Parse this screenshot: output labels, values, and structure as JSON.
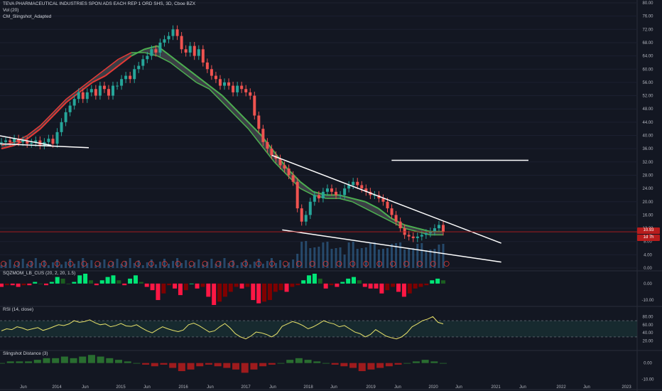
{
  "header": {
    "title": "TEVA PHARMACEUTICAL INDUSTRIES SPON ADS EACH REP 1 ORD SHS, 3D, Cboe BZX",
    "vol": "Vol (20)",
    "indicator": "CM_Slingshot_Adapted"
  },
  "price_tags": {
    "last": "10.93",
    "countdown": "1d 7h"
  },
  "colors": {
    "background": "#131722",
    "up": "#26a69a",
    "down": "#ef5350",
    "ema_bull": "#4caf50",
    "ema_bear": "#e53935",
    "rsi": "#e8e26a",
    "trendline": "#ffffff",
    "last_price": "#b71c1c"
  },
  "chart_data": [
    {
      "type": "line",
      "pane": "price",
      "ylim": [
        0,
        80
      ],
      "y_ticks": [
        "80.00",
        "76.00",
        "72.00",
        "68.00",
        "64.00",
        "60.00",
        "56.00",
        "52.00",
        "48.00",
        "44.00",
        "40.00",
        "36.00",
        "32.00",
        "28.00",
        "24.00",
        "20.00",
        "16.00",
        "12.00",
        "8.00",
        "4.00",
        "0.00"
      ],
      "x_ticks": [
        "Jun",
        "2014",
        "Jun",
        "2015",
        "Jun",
        "2016",
        "Jun",
        "2017",
        "Jun",
        "2018",
        "Jun",
        "2019",
        "Jun",
        "2020",
        "Jun",
        "2021",
        "Jun",
        "2022",
        "Jun",
        "2023"
      ],
      "series": [
        {
          "values": [
            38,
            38.5,
            38,
            39,
            38,
            38.5,
            37.5,
            37.8,
            38.5,
            37,
            38,
            39,
            37.5,
            41,
            44,
            47,
            49,
            51,
            53,
            51,
            53,
            54,
            52,
            55,
            54,
            52,
            55,
            55,
            57,
            58,
            57,
            60,
            61,
            63,
            64,
            66,
            65,
            68,
            69,
            70,
            72,
            70,
            66,
            65,
            67,
            64,
            66,
            62,
            60,
            58,
            57,
            55,
            56,
            55,
            53,
            55,
            54,
            53,
            52,
            46,
            42,
            38,
            36,
            34,
            33,
            31,
            30,
            28,
            26,
            18,
            14,
            16,
            20,
            22,
            21,
            23,
            24,
            23,
            22,
            22,
            24,
            25,
            26,
            25,
            24,
            23,
            22,
            22,
            21,
            20,
            18,
            16,
            14,
            12,
            10,
            9.5,
            9,
            9.5,
            10,
            10.5,
            11,
            12,
            13,
            11
          ]
        },
        {
          "values": [
            36,
            37,
            39,
            42,
            46,
            50,
            53,
            56,
            58,
            61,
            64,
            66,
            67,
            64,
            61,
            58,
            55,
            52,
            48,
            44,
            40,
            35,
            30,
            26,
            23,
            22,
            22,
            21,
            20,
            18,
            15,
            13,
            12,
            11,
            11
          ]
        },
        {
          "values": [
            37,
            38,
            40,
            43,
            47,
            51,
            54,
            57,
            60,
            63,
            65,
            65,
            64,
            62,
            59,
            56,
            54,
            50,
            46,
            42,
            37,
            32,
            28,
            24,
            22,
            21,
            21,
            20,
            18,
            16,
            14,
            12,
            11,
            10,
            10
          ]
        }
      ],
      "trendlines": [
        {
          "x": [
            "2013-02",
            "2013-12"
          ],
          "y": [
            40,
            37
          ]
        },
        {
          "x": [
            "2013-02",
            "2014-07"
          ],
          "y": [
            37.5,
            36.3
          ]
        },
        {
          "x": [
            "2017-06",
            "2021-02"
          ],
          "y": [
            34,
            7.5
          ]
        },
        {
          "x": [
            "2017-08",
            "2021-02"
          ],
          "y": [
            11.5,
            1.8
          ]
        },
        {
          "x": [
            "2019-05",
            "2021-07"
          ],
          "y": [
            32.5,
            32.5
          ]
        }
      ],
      "last_price": 10.93
    },
    {
      "type": "bar",
      "pane": "squeeze_momentum",
      "title": "SQZMOM_LB_CUS (20, 2, 20, 1.5)",
      "y_ticks": [
        "0.00",
        "-10.00"
      ],
      "values": [
        -2,
        -1,
        -1,
        -2,
        -1,
        -1,
        1,
        0,
        -1,
        1,
        4,
        3,
        0,
        1,
        5,
        6,
        2,
        -1,
        2,
        4,
        5,
        2,
        -1,
        3,
        5,
        1,
        -2,
        -4,
        -10,
        -6,
        -1,
        -3,
        -7,
        -4,
        0,
        -3,
        -2,
        -8,
        -13,
        -11,
        -8,
        -5,
        -2,
        -3,
        -2,
        -10,
        -12,
        -11,
        -10,
        -5,
        -4,
        -5,
        -2,
        -1,
        2,
        5,
        6,
        3,
        -3,
        -1,
        -2,
        1,
        3,
        4,
        2,
        -2,
        -3,
        -3,
        -6,
        -4,
        -2,
        -5,
        -8,
        -6,
        -3,
        -2,
        -1,
        2,
        3,
        2
      ]
    },
    {
      "type": "line",
      "pane": "rsi",
      "title": "RSI (14, close)",
      "ylim": [
        0,
        100
      ],
      "y_ticks": [
        "80.00",
        "60.00",
        "40.00",
        "20.00"
      ],
      "values": [
        45,
        50,
        48,
        55,
        52,
        47,
        50,
        53,
        46,
        50,
        55,
        60,
        58,
        62,
        70,
        66,
        68,
        72,
        65,
        60,
        62,
        55,
        58,
        63,
        57,
        56,
        60,
        52,
        45,
        40,
        48,
        55,
        50,
        46,
        43,
        47,
        60,
        64,
        58,
        50,
        42,
        45,
        55,
        63,
        52,
        38,
        30,
        25,
        32,
        42,
        40,
        36,
        30,
        38,
        56,
        62,
        68,
        64,
        58,
        50,
        55,
        62,
        70,
        65,
        62,
        55,
        58,
        50,
        42,
        38,
        30,
        36,
        48,
        40,
        32,
        28,
        25,
        30,
        40,
        55,
        62,
        70,
        74,
        80,
        66,
        62
      ]
    },
    {
      "type": "bar",
      "pane": "slingshot_distance",
      "title": "Slingshot Distance (3)",
      "y_ticks": [
        "0.00",
        "-10.00"
      ],
      "values": [
        0,
        1,
        1,
        1,
        2,
        3,
        3,
        4,
        3,
        4,
        5,
        4,
        3,
        2,
        1,
        0,
        -1,
        -2,
        -1,
        -3,
        -5,
        -4,
        -2,
        -1,
        -2,
        -3,
        -4,
        -6,
        -4,
        -2,
        -1,
        0,
        2,
        3,
        2,
        1,
        0,
        -1,
        -2,
        -3,
        -5,
        -4,
        -3,
        -2,
        -1,
        0,
        1,
        2,
        1,
        0
      ]
    }
  ]
}
